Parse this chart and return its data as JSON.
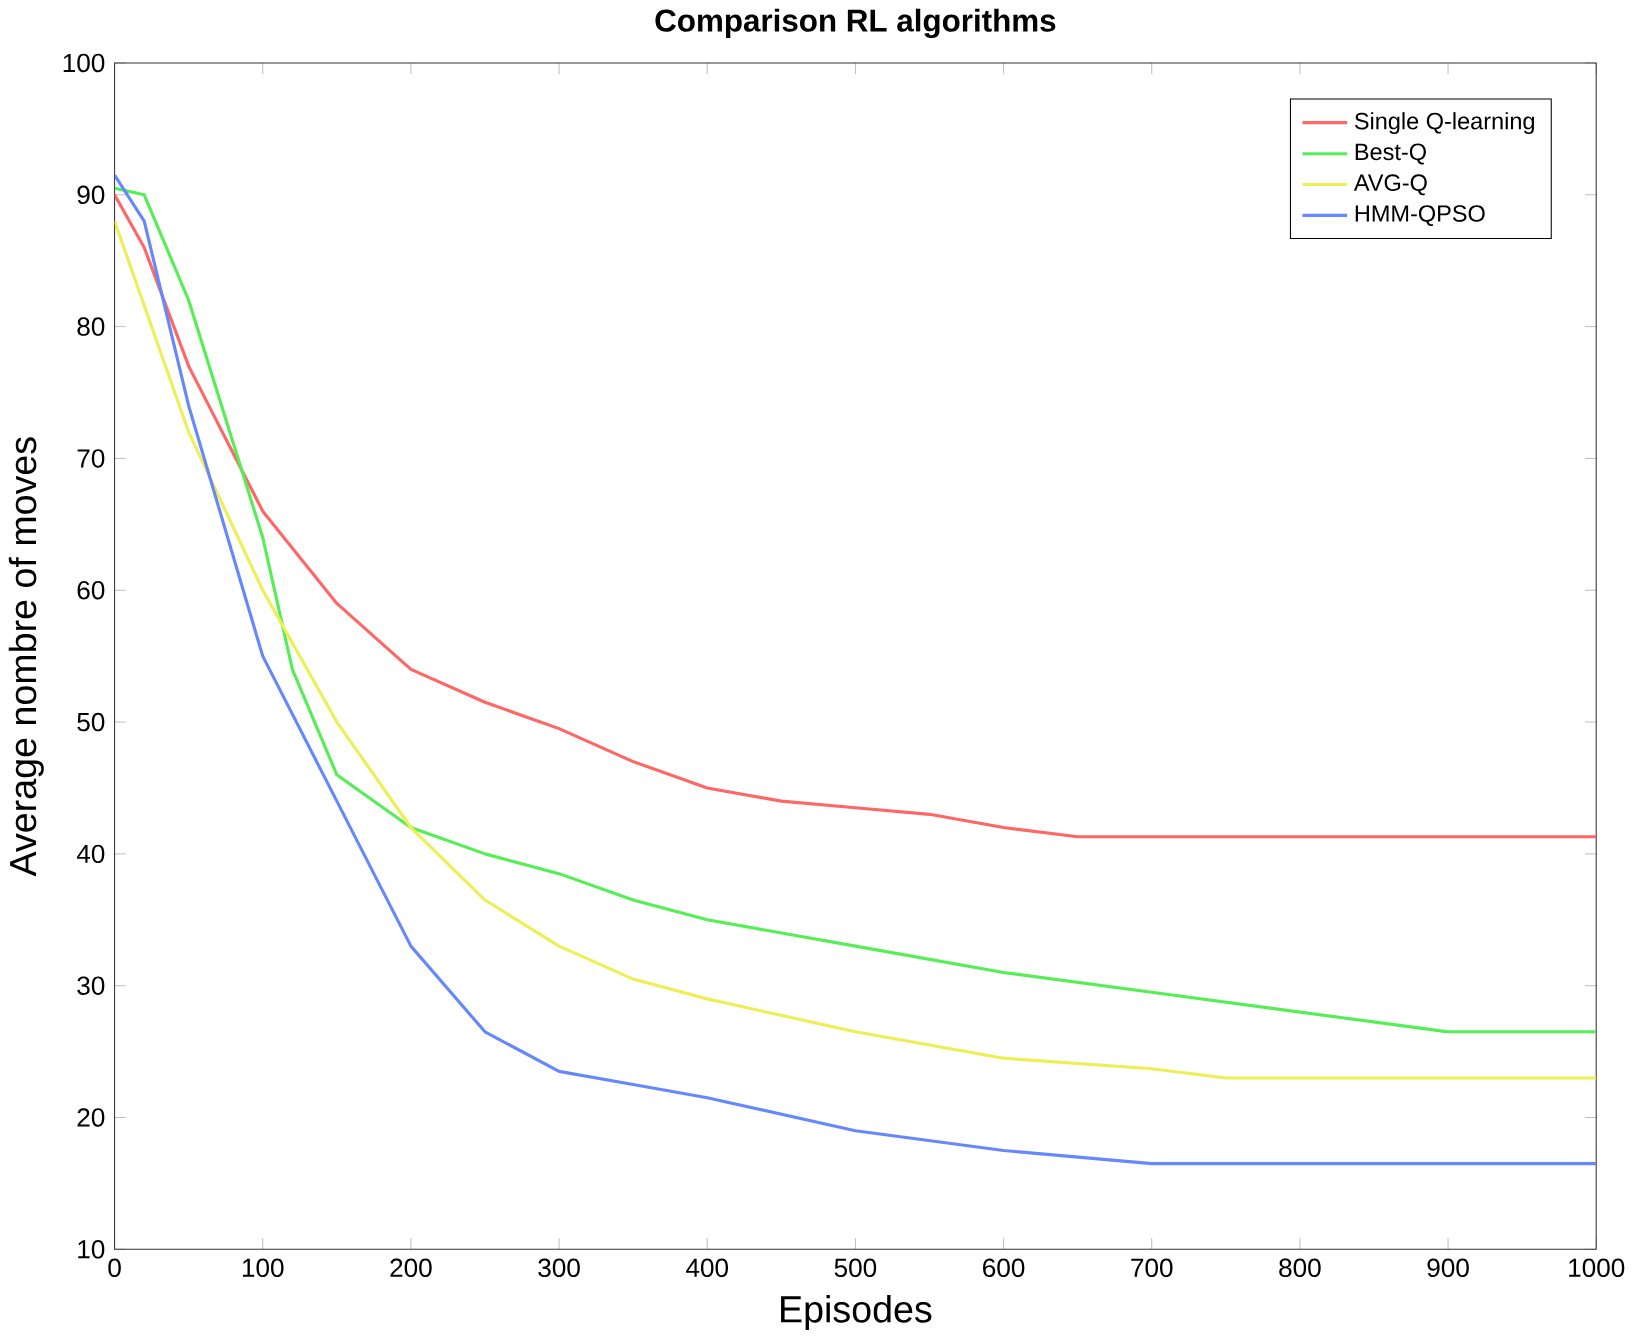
{
  "chart_data": {
    "type": "line",
    "title": "Comparison RL algorithms",
    "xlabel": "Episodes",
    "ylabel": "Average nombre of moves",
    "xlim": [
      0,
      1000
    ],
    "ylim": [
      10,
      100
    ],
    "xticks": [
      0,
      100,
      200,
      300,
      400,
      500,
      600,
      700,
      800,
      900,
      1000
    ],
    "yticks": [
      10,
      20,
      30,
      40,
      50,
      60,
      70,
      80,
      90,
      100
    ],
    "grid": false,
    "legend": "top right",
    "marker": "none",
    "line_style": "solid",
    "series": [
      {
        "name": "Single Q-learning",
        "color": "#ff6666",
        "x": [
          0,
          20,
          50,
          100,
          150,
          200,
          250,
          300,
          350,
          400,
          450,
          500,
          550,
          600,
          650,
          1000
        ],
        "values": [
          90,
          86,
          77,
          66,
          59,
          54,
          51.5,
          49.5,
          47,
          45,
          44,
          43.5,
          43,
          42,
          41.3,
          41.3
        ]
      },
      {
        "name": "Best-Q",
        "color": "#55ee55",
        "x": [
          0,
          20,
          50,
          100,
          120,
          150,
          200,
          250,
          300,
          350,
          400,
          500,
          600,
          700,
          800,
          900,
          1000
        ],
        "values": [
          90.5,
          90,
          82,
          64,
          54,
          46,
          42,
          40,
          38.5,
          36.5,
          35,
          33,
          31,
          29.5,
          28,
          26.5,
          26.5
        ]
      },
      {
        "name": "AVG-Q",
        "color": "#eeee55",
        "x": [
          0,
          50,
          100,
          150,
          200,
          250,
          300,
          350,
          400,
          500,
          600,
          700,
          750,
          1000
        ],
        "values": [
          88,
          72,
          60,
          50,
          42,
          36.5,
          33,
          30.5,
          29,
          26.5,
          24.5,
          23.7,
          23,
          23
        ]
      },
      {
        "name": "HMM-QPSO",
        "color": "#6688ff",
        "x": [
          0,
          20,
          50,
          100,
          150,
          200,
          250,
          300,
          350,
          400,
          500,
          600,
          700,
          1000
        ],
        "values": [
          91.5,
          88,
          74,
          55,
          44,
          33,
          26.5,
          23.5,
          22.5,
          21.5,
          19,
          17.5,
          16.5,
          16.5
        ]
      }
    ]
  }
}
